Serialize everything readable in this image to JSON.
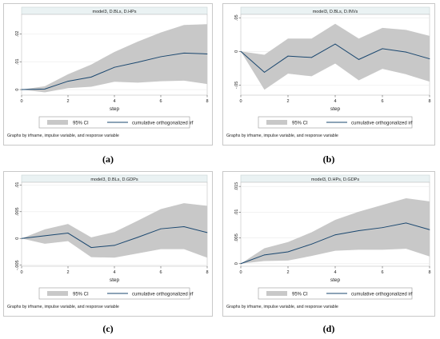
{
  "chart_data": [
    {
      "type": "line",
      "panel_label": "(a)",
      "title": "model3, D.BLs, D.HPs",
      "xlabel": "step",
      "x": [
        0,
        1,
        2,
        3,
        4,
        5,
        6,
        7,
        8
      ],
      "xticks": [
        "0",
        "2",
        "4",
        "6",
        "8"
      ],
      "xtick_values": [
        0,
        2,
        4,
        6,
        8
      ],
      "yticks": [
        "0",
        ".01",
        ".02"
      ],
      "ytick_values": [
        0,
        0.01,
        0.02
      ],
      "ylim": [
        -0.002,
        0.027
      ],
      "series": [
        {
          "name": "cumulative orthogonalized irf",
          "values": [
            0,
            0.0002,
            0.003,
            0.0045,
            0.008,
            0.0098,
            0.0118,
            0.0131,
            0.0128
          ]
        }
      ],
      "ci": {
        "name": "95% CI",
        "lower": [
          0,
          -0.001,
          0.0005,
          0.001,
          0.0028,
          0.0025,
          0.003,
          0.0032,
          0.002
        ],
        "upper": [
          0,
          0.0012,
          0.0055,
          0.009,
          0.0135,
          0.0172,
          0.0205,
          0.0232,
          0.0235
        ]
      },
      "legend_position": "below",
      "note": "Graphs by irfname, impulse variable, and response variable",
      "colors": {
        "line": "#1a476f",
        "band": "#c8c8c8",
        "bg": "#ffffff",
        "title_bg": "#eaf2f3"
      }
    },
    {
      "type": "line",
      "panel_label": "(b)",
      "title": "model3, D.BLs, D.INVs",
      "xlabel": "step",
      "x": [
        0,
        1,
        2,
        3,
        4,
        5,
        6,
        7,
        8
      ],
      "xticks": [
        "0",
        "2",
        "4",
        "6",
        "8"
      ],
      "xtick_values": [
        0,
        2,
        4,
        6,
        8
      ],
      "yticks": [
        "-.05",
        "0",
        ".05"
      ],
      "ytick_values": [
        -0.05,
        0,
        0.05
      ],
      "ylim": [
        -0.065,
        0.055
      ],
      "series": [
        {
          "name": "cumulative orthogonalized irf",
          "values": [
            0,
            -0.031,
            -0.007,
            -0.009,
            0.011,
            -0.012,
            0.004,
            -0.001,
            -0.011
          ]
        }
      ],
      "ci": {
        "name": "95% CI",
        "lower": [
          0,
          -0.057,
          -0.033,
          -0.037,
          -0.018,
          -0.043,
          -0.026,
          -0.034,
          -0.045
        ],
        "upper": [
          0,
          -0.005,
          0.019,
          0.019,
          0.041,
          0.019,
          0.035,
          0.032,
          0.023
        ]
      },
      "legend_position": "below",
      "note": "Graphs by irfname, impulse variable, and response variable",
      "colors": {
        "line": "#1a476f",
        "band": "#c8c8c8",
        "bg": "#ffffff",
        "title_bg": "#eaf2f3"
      }
    },
    {
      "type": "line",
      "panel_label": "(c)",
      "title": "model3, D.BLs, D.GDPs",
      "xlabel": "step",
      "x": [
        0,
        1,
        2,
        3,
        4,
        5,
        6,
        7,
        8
      ],
      "xticks": [
        "0",
        "2",
        "4",
        "6",
        "8"
      ],
      "xtick_values": [
        0,
        2,
        4,
        6,
        8
      ],
      "yticks": [
        "-.005",
        "0",
        ".005",
        ".01"
      ],
      "ytick_values": [
        -0.005,
        0,
        0.005,
        0.01
      ],
      "ylim": [
        -0.0052,
        0.0105
      ],
      "series": [
        {
          "name": "cumulative orthogonalized irf",
          "values": [
            0,
            0.0005,
            0.001,
            -0.0017,
            -0.0013,
            0.0002,
            0.0018,
            0.0022,
            0.0011
          ]
        }
      ],
      "ci": {
        "name": "95% CI",
        "lower": [
          0,
          -0.001,
          -0.0005,
          -0.0035,
          -0.0036,
          -0.0028,
          -0.002,
          -0.002,
          -0.0036
        ],
        "upper": [
          0,
          0.0017,
          0.0027,
          0.0002,
          0.0012,
          0.0033,
          0.0055,
          0.0066,
          0.0061
        ]
      },
      "legend_position": "below",
      "note": "Graphs by irfname, impulse variable, and response variable",
      "colors": {
        "line": "#1a476f",
        "band": "#c8c8c8",
        "bg": "#ffffff",
        "title_bg": "#eaf2f3"
      }
    },
    {
      "type": "line",
      "panel_label": "(d)",
      "title": "model3, D.HPs, D.GDPs",
      "xlabel": "step",
      "x": [
        0,
        1,
        2,
        3,
        4,
        5,
        6,
        7,
        8
      ],
      "xticks": [
        "0",
        "2",
        "4",
        "6",
        "8"
      ],
      "xtick_values": [
        0,
        2,
        4,
        6,
        8
      ],
      "yticks": [
        "0",
        ".005",
        ".01",
        ".015"
      ],
      "ytick_values": [
        0,
        0.005,
        0.01,
        0.015
      ],
      "ylim": [
        -0.0005,
        0.0158
      ],
      "series": [
        {
          "name": "cumulative orthogonalized irf",
          "values": [
            0,
            0.0017,
            0.0023,
            0.0038,
            0.0056,
            0.0064,
            0.007,
            0.0079,
            0.0066
          ]
        }
      ],
      "ci": {
        "name": "95% CI",
        "lower": [
          0,
          0.0005,
          0.0006,
          0.0015,
          0.0025,
          0.0027,
          0.0027,
          0.0029,
          0.0014
        ],
        "upper": [
          0,
          0.003,
          0.0042,
          0.0061,
          0.0085,
          0.0101,
          0.0114,
          0.0127,
          0.0121
        ]
      },
      "legend_position": "below",
      "note": "Graphs by irfname, impulse variable, and response variable",
      "colors": {
        "line": "#1a476f",
        "band": "#c8c8c8",
        "bg": "#ffffff",
        "title_bg": "#eaf2f3"
      }
    }
  ]
}
